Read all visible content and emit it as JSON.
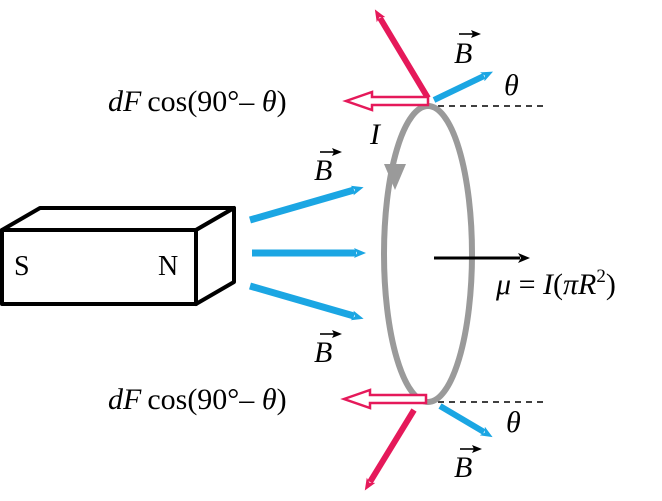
{
  "magnet": {
    "south_label": "S",
    "north_label": "N"
  },
  "labels": {
    "field_top": "B",
    "field_upper": "B",
    "field_lower": "B",
    "field_bottom": "B",
    "angle_top": "θ",
    "angle_bottom": "θ",
    "current": "I",
    "force_top": {
      "d": "dF",
      "expr": "cos(90°– ",
      "theta": "θ",
      "close": ")"
    },
    "force_bottom": {
      "d": "dF",
      "expr": "cos(90°– ",
      "theta": "θ",
      "close": ")"
    },
    "moment": {
      "mu": "μ",
      "eq": " = ",
      "i": "I",
      "open": "(",
      "pi": "π",
      "r": "R",
      "exp": "2",
      "close": ")"
    }
  },
  "colors": {
    "field": "#1ba6e3",
    "force": "#e5195a",
    "loop": "#9a9a9a",
    "ink": "#000000"
  },
  "icons": {
    "field_vector": "arrow-right-blue",
    "force_vector": "arrow-red",
    "force_component": "hollow-arrow-left-red",
    "loop_current": "arrowhead-down-gray",
    "moment_vector": "arrow-right-black"
  }
}
